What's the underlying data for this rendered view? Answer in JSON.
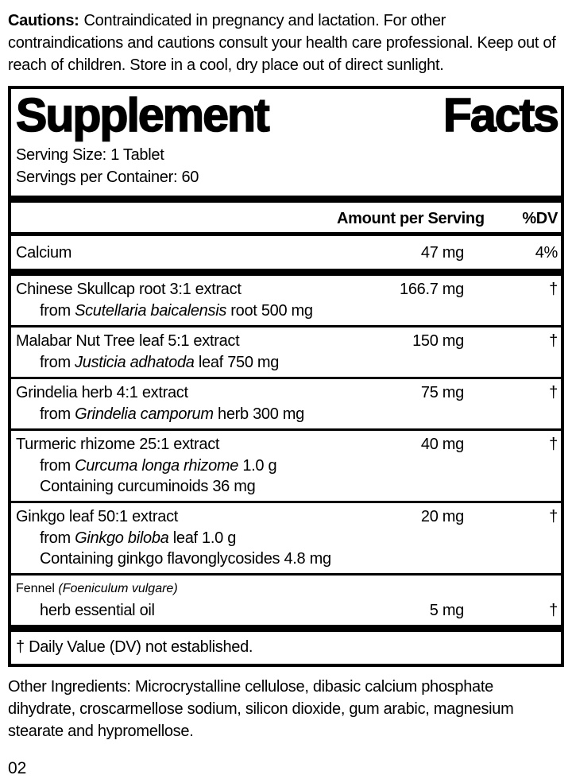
{
  "colors": {
    "ink": "#000000",
    "background": "#ffffff"
  },
  "cautions": {
    "label": "Cautions:",
    "text": "Contraindicated in pregnancy and lactation. For other contraindications and cautions consult your health care professional. Keep out of reach of children. Store in a cool, dry place out of direct sunlight."
  },
  "supplement_facts": {
    "title": {
      "word1": "Supplement",
      "word2": "Facts"
    },
    "serving_size": "Serving Size: 1 Tablet",
    "servings_per_container": "Servings per Container: 60",
    "columns": {
      "amount": "Amount per Serving",
      "dv": "%DV"
    },
    "rows": [
      {
        "name": "Calcium",
        "amount": "47 mg",
        "dv": "4%"
      },
      {
        "name": "Chinese Skullcap root 3:1 extract",
        "amount": "166.7 mg",
        "dv": "†",
        "sub1": {
          "pre": "from ",
          "italic": "Scutellaria baicalensis",
          "post": " root 500 mg"
        }
      },
      {
        "name": "Malabar Nut Tree leaf 5:1 extract",
        "amount": "150 mg",
        "dv": "†",
        "sub1": {
          "pre": "from ",
          "italic": "Justicia adhatoda",
          "post": " leaf 750 mg"
        }
      },
      {
        "name": "Grindelia herb 4:1 extract",
        "amount": "75 mg",
        "dv": "†",
        "sub1": {
          "pre": "from ",
          "italic": "Grindelia camporum",
          "post": " herb 300 mg"
        }
      },
      {
        "name": "Turmeric rhizome 25:1 extract",
        "amount": "40 mg",
        "dv": "†",
        "sub1": {
          "pre": "from ",
          "italic": "Curcuma longa rhizome",
          "post": " 1.0 g"
        },
        "sub2": "Containing curcuminoids 36 mg"
      },
      {
        "name": "Ginkgo leaf 50:1 extract",
        "amount": "20 mg",
        "dv": "†",
        "sub1": {
          "pre": "from ",
          "italic": "Ginkgo biloba",
          "post": " leaf 1.0 g"
        },
        "sub2": "Containing ginkgo flavonglycosides 4.8 mg"
      },
      {
        "name_pre": "Fennel ",
        "name_italic": "(Foeniculum vulgare)",
        "sub_name": "herb essential oil",
        "amount": "5 mg",
        "dv": "†"
      }
    ],
    "footnote": "† Daily Value (DV) not established."
  },
  "other_ingredients": "Other Ingredients: Microcrystalline cellulose, dibasic calcium phosphate dihydrate, croscarmellose sodium, silicon dioxide, gum arabic, magnesium stearate and hypromellose.",
  "page_number": "02"
}
